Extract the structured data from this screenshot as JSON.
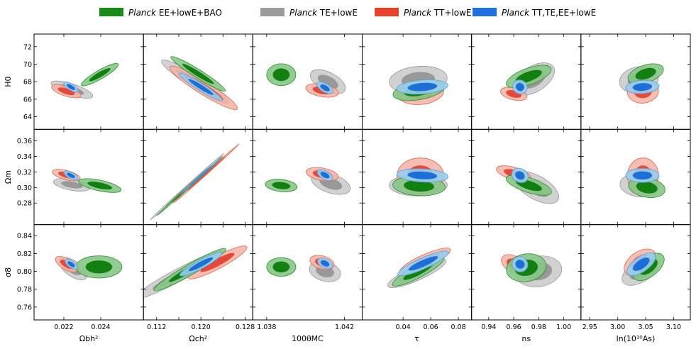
{
  "chart_data": {
    "type": "contour-triangle",
    "legend": [
      {
        "name_italic": "Planck",
        "name_rest": " EE+lowE+BAO",
        "color": "#178a17"
      },
      {
        "name_italic": "Planck",
        "name_rest": " TE+lowE",
        "color": "#9c9c9c"
      },
      {
        "name_italic": "Planck",
        "name_rest": " TT+lowE",
        "color": "#e8412b"
      },
      {
        "name_italic": "Planck",
        "name_rest": " TT,TE,EE+lowE",
        "color": "#1f6fe0"
      }
    ],
    "series_styles": {
      "ee": {
        "outer": "#86c786",
        "inner": "#118011",
        "edge": "#2e8b2e"
      },
      "te": {
        "outer": "#cccccc",
        "inner": "#999999",
        "edge": "#9a9a9a"
      },
      "tt": {
        "outer": "#f4b3a5",
        "inner": "#e6483a",
        "edge": "#d96a55"
      },
      "ttte": {
        "outer": "#99ccee",
        "inner": "#1b6fd6",
        "edge": "#5aa0d8"
      }
    },
    "columns": [
      {
        "label": "Ωbh²",
        "range": [
          0.0205,
          0.0262
        ],
        "ticks": [
          0.022,
          0.024
        ],
        "tick_labels": [
          "0.022",
          "0.024"
        ]
      },
      {
        "label": "Ωch²",
        "range": [
          0.11,
          0.129
        ],
        "ticks": [
          0.112,
          0.116,
          0.12,
          0.124,
          0.128
        ],
        "tick_labels": [
          "0.112",
          "",
          "0.120",
          "",
          "0.128"
        ]
      },
      {
        "label": "100θMC",
        "range": [
          1.0374,
          1.0428
        ],
        "ticks": [
          1.038,
          1.042
        ],
        "tick_labels": [
          "1.038",
          "1.042"
        ]
      },
      {
        "label": "τ",
        "range": [
          0.012,
          0.088
        ],
        "ticks": [
          0.04,
          0.06,
          0.08
        ],
        "tick_labels": [
          "0.04",
          "0.06",
          "0.08"
        ]
      },
      {
        "label": "ns",
        "range": [
          0.928,
          1.012
        ],
        "ticks": [
          0.94,
          0.96,
          0.98,
          1.0
        ],
        "tick_labels": [
          "0.94",
          "0.96",
          "0.98",
          "1.00"
        ]
      },
      {
        "label": "ln(10¹⁰As)",
        "range": [
          2.938,
          3.126
        ],
        "ticks": [
          2.95,
          3.0,
          3.05,
          3.1
        ],
        "tick_labels": [
          "2.95",
          "3.00",
          "3.05",
          "3.10"
        ]
      }
    ],
    "rows": [
      {
        "label": "H0",
        "range": [
          62.8,
          73.2
        ],
        "ticks": [
          64,
          66,
          68,
          70,
          72
        ],
        "tick_labels": [
          "64",
          "66",
          "68",
          "70",
          "72"
        ]
      },
      {
        "label": "Ωm",
        "range": [
          0.255,
          0.372
        ],
        "ticks": [
          0.28,
          0.3,
          0.32,
          0.34,
          0.36
        ],
        "tick_labels": [
          "0.28",
          "0.30",
          "0.32",
          "0.34",
          "0.36"
        ]
      },
      {
        "label": "σ8",
        "range": [
          0.748,
          0.85
        ],
        "ticks": [
          0.76,
          0.78,
          0.8,
          0.82,
          0.84
        ],
        "tick_labels": [
          "0.76",
          "0.78",
          "0.80",
          "0.82",
          "0.84"
        ]
      }
    ],
    "contours": [
      [
        {
          "ee": [
            0.02395,
            68.8,
            0.00115,
            0.5,
            30
          ],
          "te": [
            0.02243,
            67.1,
            0.00031,
            2.5,
            72
          ],
          "tt": [
            0.02213,
            66.9,
            0.00026,
            1.75,
            72
          ],
          "ttte": [
            0.02238,
            67.4,
            0.00017,
            0.95,
            58
          ]
        },
        {
          "ee": [
            0.1195,
            68.9,
            0.0058,
            0.48,
            -32
          ],
          "te": [
            0.119,
            68.0,
            0.0072,
            0.75,
            -32
          ],
          "tt": [
            0.1205,
            67.3,
            0.0072,
            0.75,
            -32
          ],
          "ttte": [
            0.12,
            67.4,
            0.0046,
            0.42,
            -32
          ]
        },
        {
          "ee": [
            1.03875,
            68.8,
            0.00075,
            1.25,
            0
          ],
          "te": [
            1.04115,
            68.0,
            0.00048,
            2.2,
            63
          ],
          "tt": [
            1.04085,
            67.0,
            0.00032,
            1.9,
            80
          ],
          "ttte": [
            1.041,
            67.3,
            0.00022,
            1.05,
            60
          ]
        },
        {
          "ee": [
            0.0515,
            67.0,
            0.019,
            1.05,
            10
          ],
          "te": [
            0.051,
            68.2,
            0.021,
            1.55,
            5
          ],
          "tt": [
            0.0525,
            66.8,
            0.017,
            1.4,
            5
          ],
          "ttte": [
            0.054,
            67.4,
            0.0185,
            0.8,
            4
          ]
        },
        {
          "ee": [
            0.972,
            68.6,
            0.019,
            0.95,
            20
          ],
          "te": [
            0.976,
            68.3,
            0.0185,
            1.45,
            32
          ],
          "tt": [
            0.96,
            66.6,
            0.0048,
            1.55,
            76
          ],
          "ttte": [
            0.965,
            67.4,
            0.0055,
            0.85,
            60
          ]
        },
        {
          "ee": [
            3.05,
            68.9,
            0.033,
            1.0,
            18
          ],
          "te": [
            3.038,
            68.2,
            0.035,
            1.5,
            10
          ],
          "tt": [
            3.045,
            66.9,
            0.028,
            1.35,
            5
          ],
          "ttte": [
            3.044,
            67.4,
            0.03,
            0.75,
            4
          ]
        }
      ],
      [
        {
          "ee": [
            0.02395,
            0.3025,
            0.00118,
            0.0068,
            -12
          ],
          "te": [
            0.02243,
            0.3035,
            0.0003,
            0.024,
            80
          ],
          "tt": [
            0.02213,
            0.316,
            0.00025,
            0.0185,
            75
          ],
          "ttte": [
            0.02238,
            0.3155,
            0.00017,
            0.01,
            62
          ]
        },
        {
          "ee": [
            0.118,
            0.302,
            0.008,
            0.0012,
            42
          ],
          "te": [
            0.1175,
            0.301,
            0.009,
            0.0015,
            42
          ],
          "tt": [
            0.121,
            0.318,
            0.008,
            0.0012,
            42
          ],
          "ttte": [
            0.12,
            0.315,
            0.005,
            0.0008,
            42
          ]
        },
        {
          "ee": [
            1.03875,
            0.3025,
            0.00082,
            0.0078,
            -6
          ],
          "te": [
            1.0413,
            0.305,
            0.00048,
            0.026,
            72
          ],
          "tt": [
            1.04085,
            0.317,
            0.00032,
            0.021,
            80
          ],
          "ttte": [
            1.041,
            0.316,
            0.00022,
            0.011,
            60
          ]
        },
        {
          "ee": [
            0.0515,
            0.302,
            0.019,
            0.0125,
            -3
          ],
          "te": [
            0.051,
            0.303,
            0.021,
            0.014,
            0
          ],
          "tt": [
            0.0525,
            0.315,
            0.017,
            0.023,
            0
          ],
          "ttte": [
            0.054,
            0.3155,
            0.0185,
            0.0085,
            -3
          ]
        },
        {
          "ee": [
            0.972,
            0.303,
            0.019,
            0.0095,
            -18
          ],
          "te": [
            0.978,
            0.3,
            0.02,
            0.015,
            -30
          ],
          "tt": [
            0.96,
            0.318,
            0.005,
            0.023,
            74
          ],
          "ttte": [
            0.965,
            0.3155,
            0.0055,
            0.011,
            62
          ]
        },
        {
          "ee": [
            3.052,
            0.3,
            0.033,
            0.0125,
            -10
          ],
          "te": [
            3.039,
            0.303,
            0.035,
            0.015,
            -5
          ],
          "tt": [
            3.045,
            0.315,
            0.028,
            0.023,
            0
          ],
          "ttte": [
            3.044,
            0.3155,
            0.03,
            0.009,
            0
          ]
        }
      ],
      [
        {
          "ee": [
            0.0239,
            0.805,
            0.00125,
            0.0125,
            0
          ],
          "te": [
            0.0225,
            0.803,
            0.00042,
            0.018,
            55
          ],
          "tt": [
            0.02215,
            0.808,
            0.0003,
            0.014,
            60
          ],
          "ttte": [
            0.0224,
            0.808,
            0.00018,
            0.0082,
            55
          ]
        },
        {
          "ee": [
            0.118,
            0.802,
            0.0075,
            0.006,
            30
          ],
          "te": [
            0.116,
            0.796,
            0.0092,
            0.007,
            28
          ],
          "tt": [
            0.123,
            0.81,
            0.006,
            0.007,
            28
          ],
          "ttte": [
            0.12,
            0.808,
            0.0043,
            0.0048,
            28
          ]
        },
        {
          "ee": [
            1.03875,
            0.805,
            0.00075,
            0.0105,
            0
          ],
          "te": [
            1.041,
            0.8,
            0.0005,
            0.018,
            75
          ],
          "tt": [
            1.04085,
            0.81,
            0.00034,
            0.014,
            75
          ],
          "ttte": [
            1.041,
            0.809,
            0.00024,
            0.009,
            65
          ]
        },
        {
          "ee": [
            0.051,
            0.8,
            0.021,
            0.007,
            28
          ],
          "te": [
            0.05,
            0.798,
            0.023,
            0.008,
            24
          ],
          "tt": [
            0.056,
            0.812,
            0.02,
            0.007,
            24
          ],
          "ttte": [
            0.0545,
            0.809,
            0.02,
            0.0062,
            24
          ]
        },
        {
          "ee": [
            0.97,
            0.804,
            0.016,
            0.0155,
            10
          ],
          "te": [
            0.98,
            0.8,
            0.0185,
            0.017,
            10
          ],
          "tt": [
            0.96,
            0.808,
            0.0065,
            0.015,
            60
          ],
          "ttte": [
            0.965,
            0.808,
            0.006,
            0.009,
            55
          ]
        },
        {
          "ee": [
            3.055,
            0.805,
            0.033,
            0.011,
            38
          ],
          "te": [
            3.04,
            0.8,
            0.036,
            0.012,
            32
          ],
          "tt": [
            3.04,
            0.81,
            0.032,
            0.012,
            35
          ],
          "ttte": [
            3.042,
            0.808,
            0.03,
            0.0085,
            35
          ]
        }
      ]
    ]
  }
}
